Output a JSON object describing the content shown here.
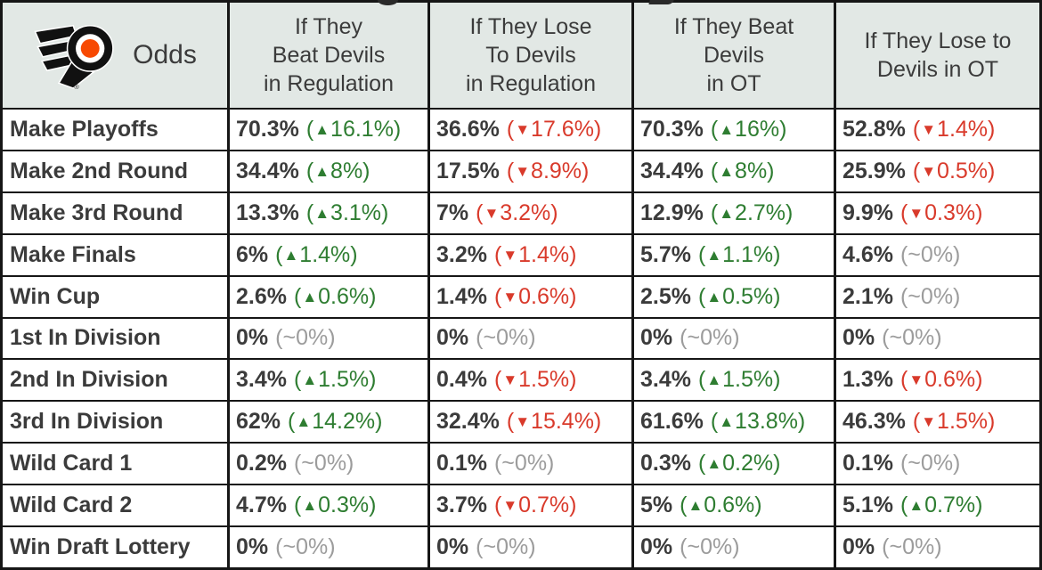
{
  "colors": {
    "header_bg": "#e2e8e5",
    "line": "#161616",
    "text": "#3b3b3b",
    "green": "#2e7d31",
    "red": "#d93a2b",
    "gray": "#9c9c9c",
    "orange": "#f74902"
  },
  "chart_data": {
    "type": "table",
    "corner_label": "Odds",
    "column_headers": [
      "If They\nBeat Devils\nin Regulation",
      "If They Lose\nTo Devils\nin Regulation",
      "If They Beat\nDevils\nin OT",
      "If They Lose to\nDevils in OT"
    ],
    "rows": [
      {
        "label": "Make Playoffs",
        "cells": [
          {
            "value": "70.3%",
            "change": "16.1%",
            "direction": "up"
          },
          {
            "value": "36.6%",
            "change": "17.6%",
            "direction": "down"
          },
          {
            "value": "70.3%",
            "change": "16%",
            "direction": "up"
          },
          {
            "value": "52.8%",
            "change": "1.4%",
            "direction": "down"
          }
        ]
      },
      {
        "label": "Make 2nd Round",
        "cells": [
          {
            "value": "34.4%",
            "change": "8%",
            "direction": "up"
          },
          {
            "value": "17.5%",
            "change": "8.9%",
            "direction": "down"
          },
          {
            "value": "34.4%",
            "change": "8%",
            "direction": "up"
          },
          {
            "value": "25.9%",
            "change": "0.5%",
            "direction": "down"
          }
        ]
      },
      {
        "label": "Make 3rd Round",
        "cells": [
          {
            "value": "13.3%",
            "change": "3.1%",
            "direction": "up"
          },
          {
            "value": "7%",
            "change": "3.2%",
            "direction": "down"
          },
          {
            "value": "12.9%",
            "change": "2.7%",
            "direction": "up"
          },
          {
            "value": "9.9%",
            "change": "0.3%",
            "direction": "down"
          }
        ]
      },
      {
        "label": "Make Finals",
        "cells": [
          {
            "value": "6%",
            "change": "1.4%",
            "direction": "up"
          },
          {
            "value": "3.2%",
            "change": "1.4%",
            "direction": "down"
          },
          {
            "value": "5.7%",
            "change": "1.1%",
            "direction": "up"
          },
          {
            "value": "4.6%",
            "change": "0%",
            "direction": "flat"
          }
        ]
      },
      {
        "label": "Win Cup",
        "cells": [
          {
            "value": "2.6%",
            "change": "0.6%",
            "direction": "up"
          },
          {
            "value": "1.4%",
            "change": "0.6%",
            "direction": "down"
          },
          {
            "value": "2.5%",
            "change": "0.5%",
            "direction": "up"
          },
          {
            "value": "2.1%",
            "change": "0%",
            "direction": "flat"
          }
        ]
      },
      {
        "label": "1st In Division",
        "cells": [
          {
            "value": "0%",
            "change": "0%",
            "direction": "flat"
          },
          {
            "value": "0%",
            "change": "0%",
            "direction": "flat"
          },
          {
            "value": "0%",
            "change": "0%",
            "direction": "flat"
          },
          {
            "value": "0%",
            "change": "0%",
            "direction": "flat"
          }
        ]
      },
      {
        "label": "2nd In Division",
        "cells": [
          {
            "value": "3.4%",
            "change": "1.5%",
            "direction": "up"
          },
          {
            "value": "0.4%",
            "change": "1.5%",
            "direction": "down"
          },
          {
            "value": "3.4%",
            "change": "1.5%",
            "direction": "up"
          },
          {
            "value": "1.3%",
            "change": "0.6%",
            "direction": "down"
          }
        ]
      },
      {
        "label": "3rd In Division",
        "cells": [
          {
            "value": "62%",
            "change": "14.2%",
            "direction": "up"
          },
          {
            "value": "32.4%",
            "change": "15.4%",
            "direction": "down"
          },
          {
            "value": "61.6%",
            "change": "13.8%",
            "direction": "up"
          },
          {
            "value": "46.3%",
            "change": "1.5%",
            "direction": "down"
          }
        ]
      },
      {
        "label": "Wild Card 1",
        "cells": [
          {
            "value": "0.2%",
            "change": "0%",
            "direction": "flat"
          },
          {
            "value": "0.1%",
            "change": "0%",
            "direction": "flat"
          },
          {
            "value": "0.3%",
            "change": "0.2%",
            "direction": "up"
          },
          {
            "value": "0.1%",
            "change": "0%",
            "direction": "flat"
          }
        ]
      },
      {
        "label": "Wild Card 2",
        "cells": [
          {
            "value": "4.7%",
            "change": "0.3%",
            "direction": "up"
          },
          {
            "value": "3.7%",
            "change": "0.7%",
            "direction": "down"
          },
          {
            "value": "5%",
            "change": "0.6%",
            "direction": "up"
          },
          {
            "value": "5.1%",
            "change": "0.7%",
            "direction": "up"
          }
        ]
      },
      {
        "label": "Win Draft Lottery",
        "cells": [
          {
            "value": "0%",
            "change": "0%",
            "direction": "flat"
          },
          {
            "value": "0%",
            "change": "0%",
            "direction": "flat"
          },
          {
            "value": "0%",
            "change": "0%",
            "direction": "flat"
          },
          {
            "value": "0%",
            "change": "0%",
            "direction": "flat"
          }
        ]
      }
    ]
  }
}
